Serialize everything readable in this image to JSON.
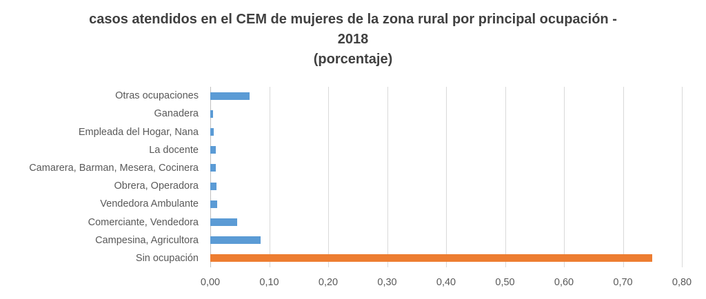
{
  "chart_data": {
    "type": "bar",
    "orientation": "horizontal",
    "title": "casos atendidos en el CEM de mujeres de la zona rural por principal ocupación - 2018 (porcentaje)",
    "title_lines": [
      "casos atendidos en el CEM de mujeres de la zona rural por principal ocupación -",
      "2018",
      "(porcentaje)"
    ],
    "xlabel": "",
    "ylabel": "",
    "xlim": [
      0,
      0.8
    ],
    "grid": true,
    "legend": null,
    "x_ticks": [
      "0,00",
      "0,10",
      "0,20",
      "0,30",
      "0,40",
      "0,50",
      "0,60",
      "0,70",
      "0,80"
    ],
    "categories": [
      "Otras ocupaciones",
      "Ganadera",
      "Empleada del Hogar, Nana",
      "La docente",
      "Camarera, Barman, Mesera, Cocinera",
      "Obrera, Operadora",
      "Vendedora Ambulante",
      "Comerciante, Vendedora",
      "Campesina, Agricultora",
      "Sin ocupación"
    ],
    "values": [
      0.067,
      0.005,
      0.006,
      0.009,
      0.009,
      0.011,
      0.012,
      0.046,
      0.085,
      0.75
    ],
    "colors": [
      "#5b9bd5",
      "#5b9bd5",
      "#5b9bd5",
      "#5b9bd5",
      "#5b9bd5",
      "#5b9bd5",
      "#5b9bd5",
      "#5b9bd5",
      "#5b9bd5",
      "#ed7d31"
    ]
  }
}
